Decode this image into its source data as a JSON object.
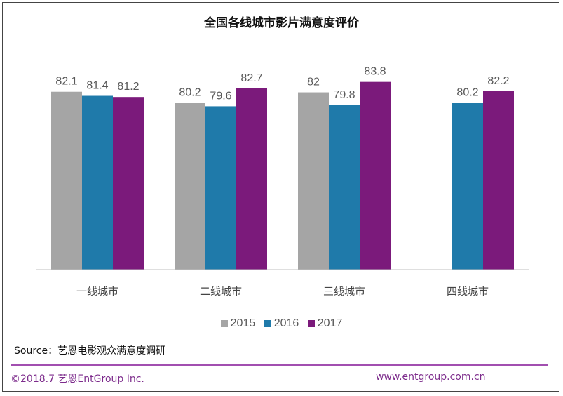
{
  "chart_data": {
    "type": "bar",
    "title": "全国各线城市影片满意度评价",
    "categories": [
      "一线城市",
      "二线城市",
      "三线城市",
      "四线城市"
    ],
    "series": [
      {
        "name": "2015",
        "color": "#a5a5a5",
        "values": [
          82.1,
          80.2,
          82,
          null
        ]
      },
      {
        "name": "2016",
        "color": "#1f7aaa",
        "values": [
          81.4,
          79.6,
          79.8,
          80.2
        ]
      },
      {
        "name": "2017",
        "color": "#7b1a7b",
        "values": [
          81.2,
          82.7,
          83.8,
          82.2
        ]
      }
    ],
    "xlabel": "",
    "ylabel": "",
    "ylim": [
      51.5,
      84
    ],
    "grid": false,
    "legend": "bottom"
  },
  "source": "Source：艺恩电影观众满意度调研",
  "footer": {
    "copyright": "©2018.7  艺恩EntGroup Inc.",
    "url": "www.entgroup.com.cn"
  }
}
